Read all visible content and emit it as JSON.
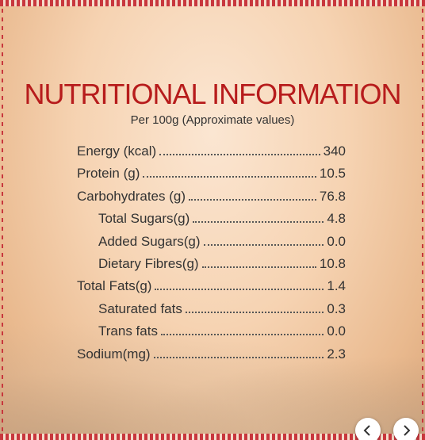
{
  "header": {
    "title": "NUTRITIONAL INFORMATION",
    "subtitle": "Per 100g (Approximate values)"
  },
  "nutrients": [
    {
      "label": "Energy (kcal)",
      "value": "340"
    },
    {
      "label": "Protein (g)",
      "value": "10.5"
    },
    {
      "label": "Carbohydrates (g)",
      "value": "76.8",
      "sub": [
        {
          "label": "Total Sugars(g)",
          "value": "4.8"
        },
        {
          "label": "Added Sugars(g)",
          "value": "0.0"
        },
        {
          "label": "Dietary Fibres(g)",
          "value": "10.8"
        }
      ]
    },
    {
      "label": "Total Fats(g)",
      "value": "1.4",
      "sub": [
        {
          "label": "Saturated fats",
          "value": "0.3"
        },
        {
          "label": "Trans fats",
          "value": "0.0"
        }
      ]
    },
    {
      "label": "Sodium(mg)",
      "value": "2.3"
    }
  ]
}
